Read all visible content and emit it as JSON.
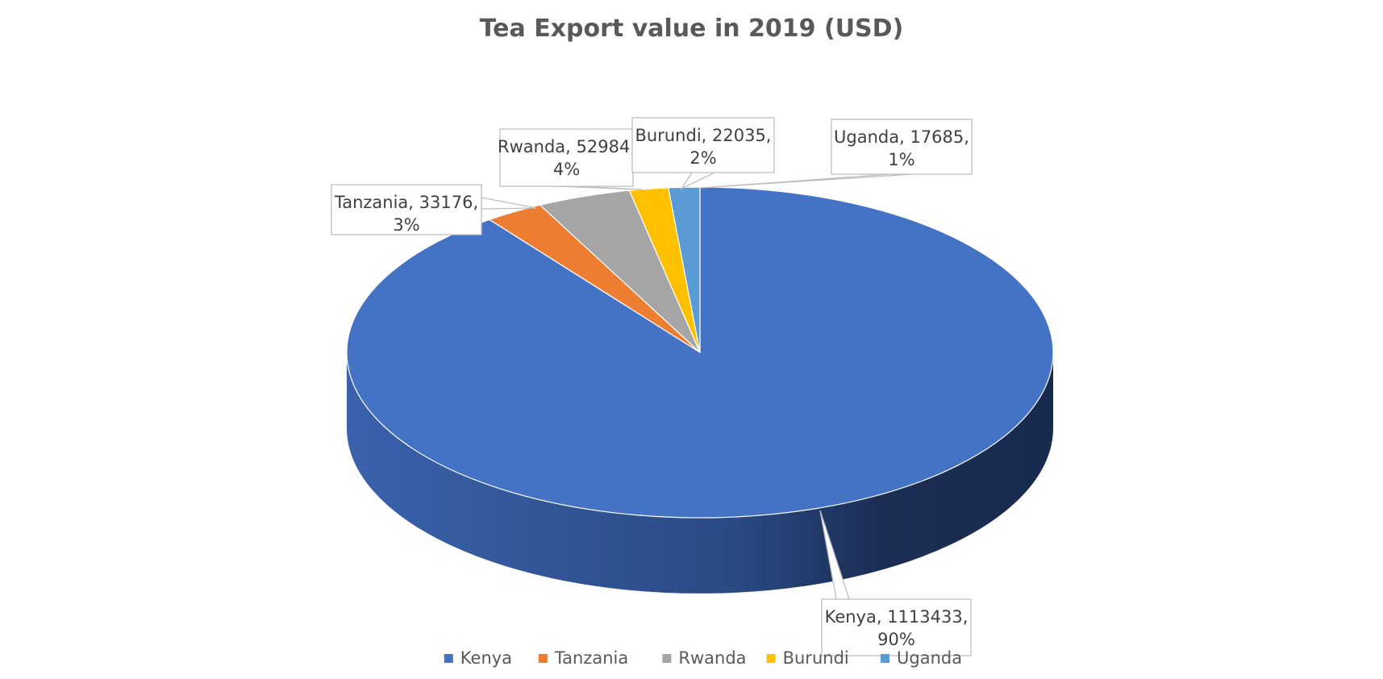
{
  "chart_data": {
    "type": "pie",
    "title": "Tea Export value in 2019 (USD)",
    "slices": [
      {
        "name": "Kenya",
        "value": 1113433,
        "percent": "90%",
        "color": "#4472C4"
      },
      {
        "name": "Tanzania",
        "value": 33176,
        "percent": "3%",
        "color": "#ED7D31"
      },
      {
        "name": "Rwanda",
        "value": 52984,
        "percent": "4%",
        "color": "#A5A5A5"
      },
      {
        "name": "Burundi",
        "value": 22035,
        "percent": "2%",
        "color": "#FFC000"
      },
      {
        "name": "Uganda",
        "value": 17685,
        "percent": "1%",
        "color": "#5B9BD5"
      }
    ],
    "legend_position": "bottom",
    "style": "3d"
  }
}
